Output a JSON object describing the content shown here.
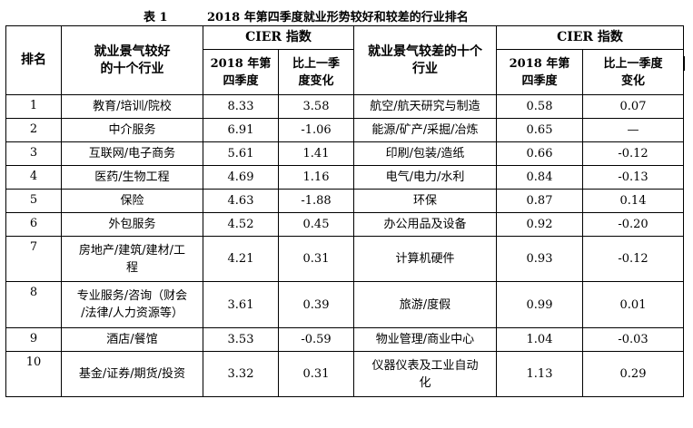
{
  "caption": {
    "label": "表 1",
    "title": "2018 年第四季度就业形势较好和较差的行业排名"
  },
  "header": {
    "rank": "排名",
    "good_industry": "就业景气较好\n的十个行业",
    "cier_index": "CIER 指数",
    "q4": "2018 年第\n四季度",
    "change": "比上一季\n度变化",
    "bad_industry": "就业景气较差的十个\n行业",
    "cier_index_2": "CIER 指数",
    "q4_2": "2018 年第\n四季度",
    "change_2": "比上一季度\n变化"
  },
  "rows": [
    {
      "rank": "1",
      "good": "教育/培训/院校",
      "good_q4": "8.33",
      "good_chg": "3.58",
      "bad": "航空/航天研究与制造",
      "bad_q4": "0.58",
      "bad_chg": "0.07"
    },
    {
      "rank": "2",
      "good": "中介服务",
      "good_q4": "6.91",
      "good_chg": "-1.06",
      "bad": "能源/矿产/采掘/冶炼",
      "bad_q4": "0.65",
      "bad_chg": "—"
    },
    {
      "rank": "3",
      "good": "互联网/电子商务",
      "good_q4": "5.61",
      "good_chg": "1.41",
      "bad": "印刷/包装/造纸",
      "bad_q4": "0.66",
      "bad_chg": "-0.12"
    },
    {
      "rank": "4",
      "good": "医药/生物工程",
      "good_q4": "4.69",
      "good_chg": "1.16",
      "bad": "电气/电力/水利",
      "bad_q4": "0.84",
      "bad_chg": "-0.13"
    },
    {
      "rank": "5",
      "good": "保险",
      "good_q4": "4.63",
      "good_chg": "-1.88",
      "bad": "环保",
      "bad_q4": "0.87",
      "bad_chg": "0.14"
    },
    {
      "rank": "6",
      "good": "外包服务",
      "good_q4": "4.52",
      "good_chg": "0.45",
      "bad": "办公用品及设备",
      "bad_q4": "0.92",
      "bad_chg": "-0.20"
    },
    {
      "rank": "7",
      "good": "房地产/建筑/建材/工\n程",
      "good_q4": "4.21",
      "good_chg": "0.31",
      "bad": "计算机硬件",
      "bad_q4": "0.93",
      "bad_chg": "-0.12"
    },
    {
      "rank": "8",
      "good": "专业服务/咨询（财会\n/法律/人力资源等）",
      "good_q4": "3.61",
      "good_chg": "0.39",
      "bad": "旅游/度假",
      "bad_q4": "0.99",
      "bad_chg": "0.01"
    },
    {
      "rank": "9",
      "good": "酒店/餐馆",
      "good_q4": "3.53",
      "good_chg": "-0.59",
      "bad": "物业管理/商业中心",
      "bad_q4": "1.04",
      "bad_chg": "-0.03"
    },
    {
      "rank": "10",
      "good": "基金/证券/期货/投资",
      "good_q4": "3.32",
      "good_chg": "0.31",
      "bad": "仪器仪表及工业自动\n化",
      "bad_q4": "1.13",
      "bad_chg": "0.29"
    }
  ]
}
